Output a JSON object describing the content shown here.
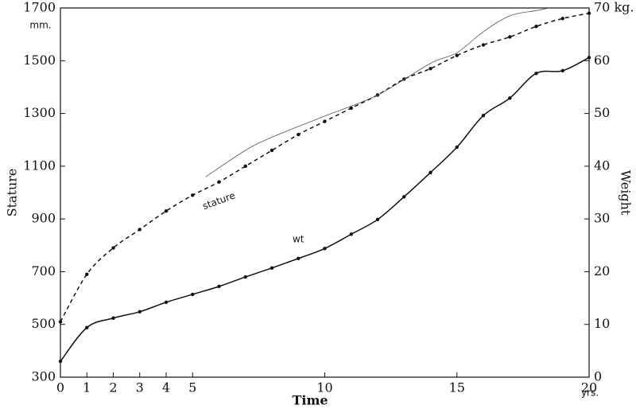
{
  "chart_data": {
    "type": "line",
    "x_label": "Time",
    "x_unit": "yrs.",
    "y_label": "Stature",
    "y_unit": "mm.",
    "y2_label": "Weight",
    "xlim": [
      0,
      20
    ],
    "xticks": [
      0,
      1,
      2,
      3,
      4,
      5,
      10,
      15,
      20
    ],
    "ylim": [
      300,
      1700
    ],
    "yticks": [
      300,
      500,
      700,
      900,
      1100,
      1300,
      1500,
      1700
    ],
    "y2lim": [
      0,
      70
    ],
    "y2ticks": [
      0,
      10,
      20,
      30,
      40,
      50,
      60,
      {
        "value": 70,
        "label": "70 kg."
      }
    ],
    "series": [
      {
        "name": "stature",
        "color": "#111111",
        "style": "dashed",
        "x": [
          0,
          1,
          2,
          3,
          4,
          5,
          6,
          7,
          8,
          9,
          10,
          11,
          12,
          13,
          14,
          15,
          16,
          17,
          18,
          19,
          20
        ],
        "values": [
          510,
          690,
          790,
          860,
          930,
          990,
          1040,
          1100,
          1160,
          1220,
          1270,
          1320,
          1370,
          1430,
          1470,
          1520,
          1560,
          1590,
          1630,
          1660,
          1680
        ]
      },
      {
        "color": "#555555",
        "style": "thin",
        "x": [
          5.5,
          7,
          8,
          10,
          12,
          14,
          15,
          16,
          17,
          18,
          18.5
        ],
        "values": [
          1060,
          1160,
          1210,
          1290,
          1370,
          1490,
          1530,
          1610,
          1670,
          1690,
          1700
        ]
      },
      {
        "name": "wt",
        "color": "#111111",
        "style": "solid",
        "axis": "y2",
        "x": [
          0,
          1,
          2,
          3,
          4,
          5,
          6,
          7,
          8,
          9,
          10,
          11,
          12,
          13,
          14,
          15,
          16,
          17,
          18,
          19,
          20
        ],
        "values": [
          3,
          9.4,
          11.2,
          12.4,
          14.2,
          15.7,
          17.2,
          19,
          20.7,
          22.5,
          24.4,
          27.1,
          29.9,
          34.2,
          38.8,
          43.6,
          49.6,
          52.9,
          57.6,
          58.1,
          60.6
        ]
      }
    ]
  }
}
